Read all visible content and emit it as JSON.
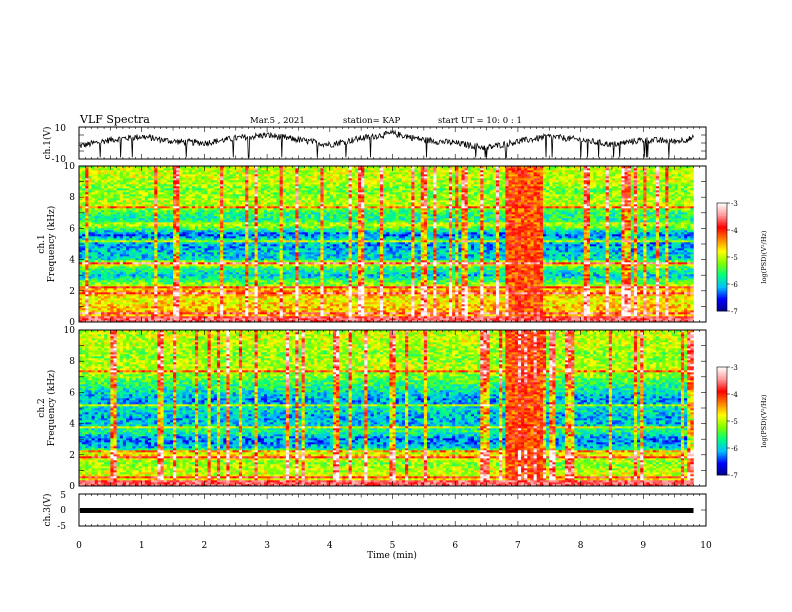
{
  "header": {
    "title": "VLF Spectra",
    "date": "Mar.5 , 2021",
    "station": "station= KAP",
    "start": "start  UT =   10: 0  : 1"
  },
  "chart_data": [
    {
      "type": "line",
      "panel": "ch1-waveform",
      "ylabel": "ch.1(V)",
      "ylim": [
        -10,
        10
      ],
      "yticks": [
        "10",
        "-10"
      ],
      "xlim": [
        0,
        10
      ],
      "series": [
        {
          "x": [
            0,
            0.5,
            1,
            1.5,
            2,
            2.5,
            3,
            3.5,
            4,
            4.5,
            5,
            5.5,
            6,
            6.5,
            7,
            7.5,
            8,
            8.5,
            9,
            9.5,
            9.8
          ],
          "values": [
            -2,
            2,
            4,
            1,
            0,
            3,
            5,
            2,
            -1,
            3,
            6,
            2,
            0,
            -3,
            1,
            4,
            2,
            -1,
            2,
            1,
            3
          ]
        }
      ],
      "color": "#000000"
    },
    {
      "type": "heatmap",
      "panel": "ch1-spectrogram",
      "ylabel": "ch.1\nFrequency  (kHz)",
      "ylim": [
        0,
        10
      ],
      "yticks": [
        "0",
        "2",
        "4",
        "6",
        "8",
        "10"
      ],
      "xlim": [
        0,
        10
      ],
      "data_extent_min": [
        0,
        9.8
      ],
      "burst_interval_min": [
        6.8,
        7.4
      ],
      "frequency_profile_log_psd": [
        [
          0,
          -4.2
        ],
        [
          0.5,
          -4.5
        ],
        [
          1,
          -4.6
        ],
        [
          1.5,
          -4.8
        ],
        [
          2,
          -4.4
        ],
        [
          2.5,
          -5.3
        ],
        [
          3,
          -6.0
        ],
        [
          3.5,
          -5.5
        ],
        [
          3.8,
          -4.4
        ],
        [
          4,
          -5.9
        ],
        [
          4.5,
          -6.0
        ],
        [
          5,
          -6.2
        ],
        [
          5.3,
          -5.8
        ],
        [
          5.6,
          -6.4
        ],
        [
          6,
          -5.5
        ],
        [
          6.3,
          -4.9
        ],
        [
          6.5,
          -5.7
        ],
        [
          7,
          -5.6
        ],
        [
          7.5,
          -5.0
        ],
        [
          8,
          -5.1
        ],
        [
          8.5,
          -5.3
        ],
        [
          9,
          -5.0
        ],
        [
          10,
          -5.0
        ]
      ]
    },
    {
      "type": "heatmap",
      "panel": "ch2-spectrogram",
      "ylabel": "ch.2\nFrequency  (kHz)",
      "ylim": [
        0,
        10
      ],
      "yticks": [
        "0",
        "2",
        "4",
        "6",
        "8",
        "10"
      ],
      "xlim": [
        0,
        10
      ],
      "data_extent_min": [
        0,
        9.8
      ],
      "burst_interval_min": [
        6.8,
        7.4
      ],
      "frequency_profile_log_psd": [
        [
          0,
          -4.4
        ],
        [
          0.5,
          -4.8
        ],
        [
          1,
          -5.0
        ],
        [
          1.5,
          -5.2
        ],
        [
          2,
          -4.6
        ],
        [
          2.5,
          -6.0
        ],
        [
          3,
          -6.3
        ],
        [
          3.5,
          -5.6
        ],
        [
          4,
          -6.0
        ],
        [
          4.5,
          -6.1
        ],
        [
          5,
          -5.8
        ],
        [
          5.5,
          -6.2
        ],
        [
          6,
          -5.9
        ],
        [
          6.5,
          -5.6
        ],
        [
          7,
          -5.3
        ],
        [
          7.5,
          -5.0
        ],
        [
          8,
          -5.1
        ],
        [
          8.5,
          -5.2
        ],
        [
          9,
          -5.0
        ],
        [
          10,
          -5.0
        ]
      ]
    },
    {
      "type": "line",
      "panel": "ch3-waveform",
      "ylabel": "ch.3(V)",
      "ylim": [
        -5,
        5
      ],
      "yticks": [
        "5",
        "0",
        "-5"
      ],
      "xlim": [
        0,
        10
      ],
      "xlabel": "Time  (min)",
      "xticks": [
        "0",
        "1",
        "2",
        "3",
        "4",
        "5",
        "6",
        "7",
        "8",
        "9",
        "10"
      ],
      "series": [
        {
          "x": [
            0,
            9.8
          ],
          "values": [
            0,
            0
          ]
        }
      ],
      "color": "#000000"
    }
  ],
  "colorbar": {
    "label": "log(PSD)(V²/Hz)",
    "ticks": [
      "-3",
      "-4",
      "-5",
      "-6",
      "-7"
    ],
    "range": [
      -7,
      -3
    ],
    "colors": [
      "#00008b",
      "#0000ff",
      "#00bfff",
      "#00ff80",
      "#7fff00",
      "#ffff00",
      "#ff8000",
      "#ff0000",
      "#ff9999",
      "#ffffff"
    ]
  }
}
